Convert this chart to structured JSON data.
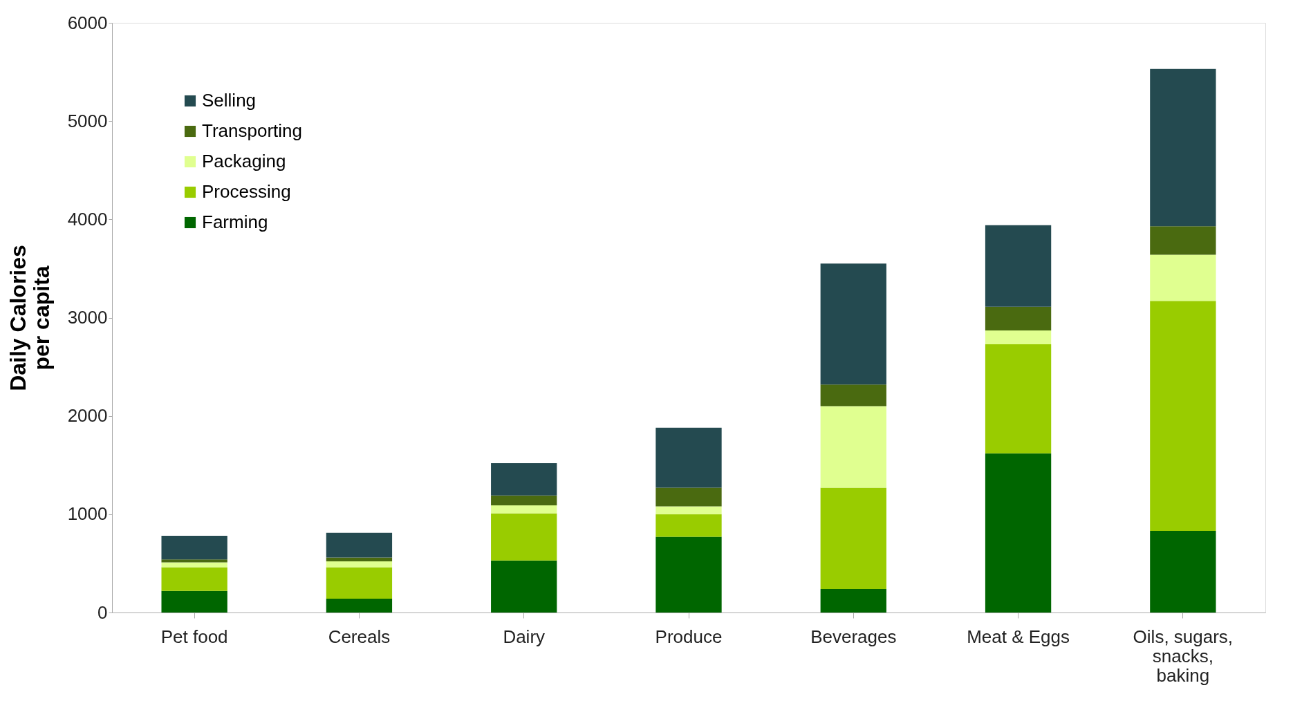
{
  "chart_data": {
    "type": "bar",
    "stacked": true,
    "ylabel": "Daily Calories per capita",
    "categories": [
      "Pet food",
      "Cereals",
      "Dairy",
      "Produce",
      "Beverages",
      "Meat & Eggs",
      "Oils, sugars, snacks, baking"
    ],
    "series": [
      {
        "name": "Farming",
        "color": "#006600",
        "values": [
          220,
          140,
          530,
          770,
          240,
          1620,
          830
        ]
      },
      {
        "name": "Processing",
        "color": "#99cc00",
        "values": [
          240,
          320,
          480,
          230,
          1030,
          1110,
          2340
        ]
      },
      {
        "name": "Packaging",
        "color": "#e0ff90",
        "values": [
          50,
          60,
          80,
          80,
          830,
          140,
          470
        ]
      },
      {
        "name": "Transporting",
        "color": "#4a6a10",
        "values": [
          30,
          40,
          100,
          190,
          220,
          240,
          290
        ]
      },
      {
        "name": "Selling",
        "color": "#244a50",
        "values": [
          240,
          250,
          330,
          610,
          1230,
          830,
          1600
        ]
      }
    ],
    "ylim": [
      0,
      6000
    ],
    "yticks": [
      0,
      1000,
      2000,
      3000,
      4000,
      5000,
      6000
    ],
    "grid": false,
    "legend": "top left"
  }
}
